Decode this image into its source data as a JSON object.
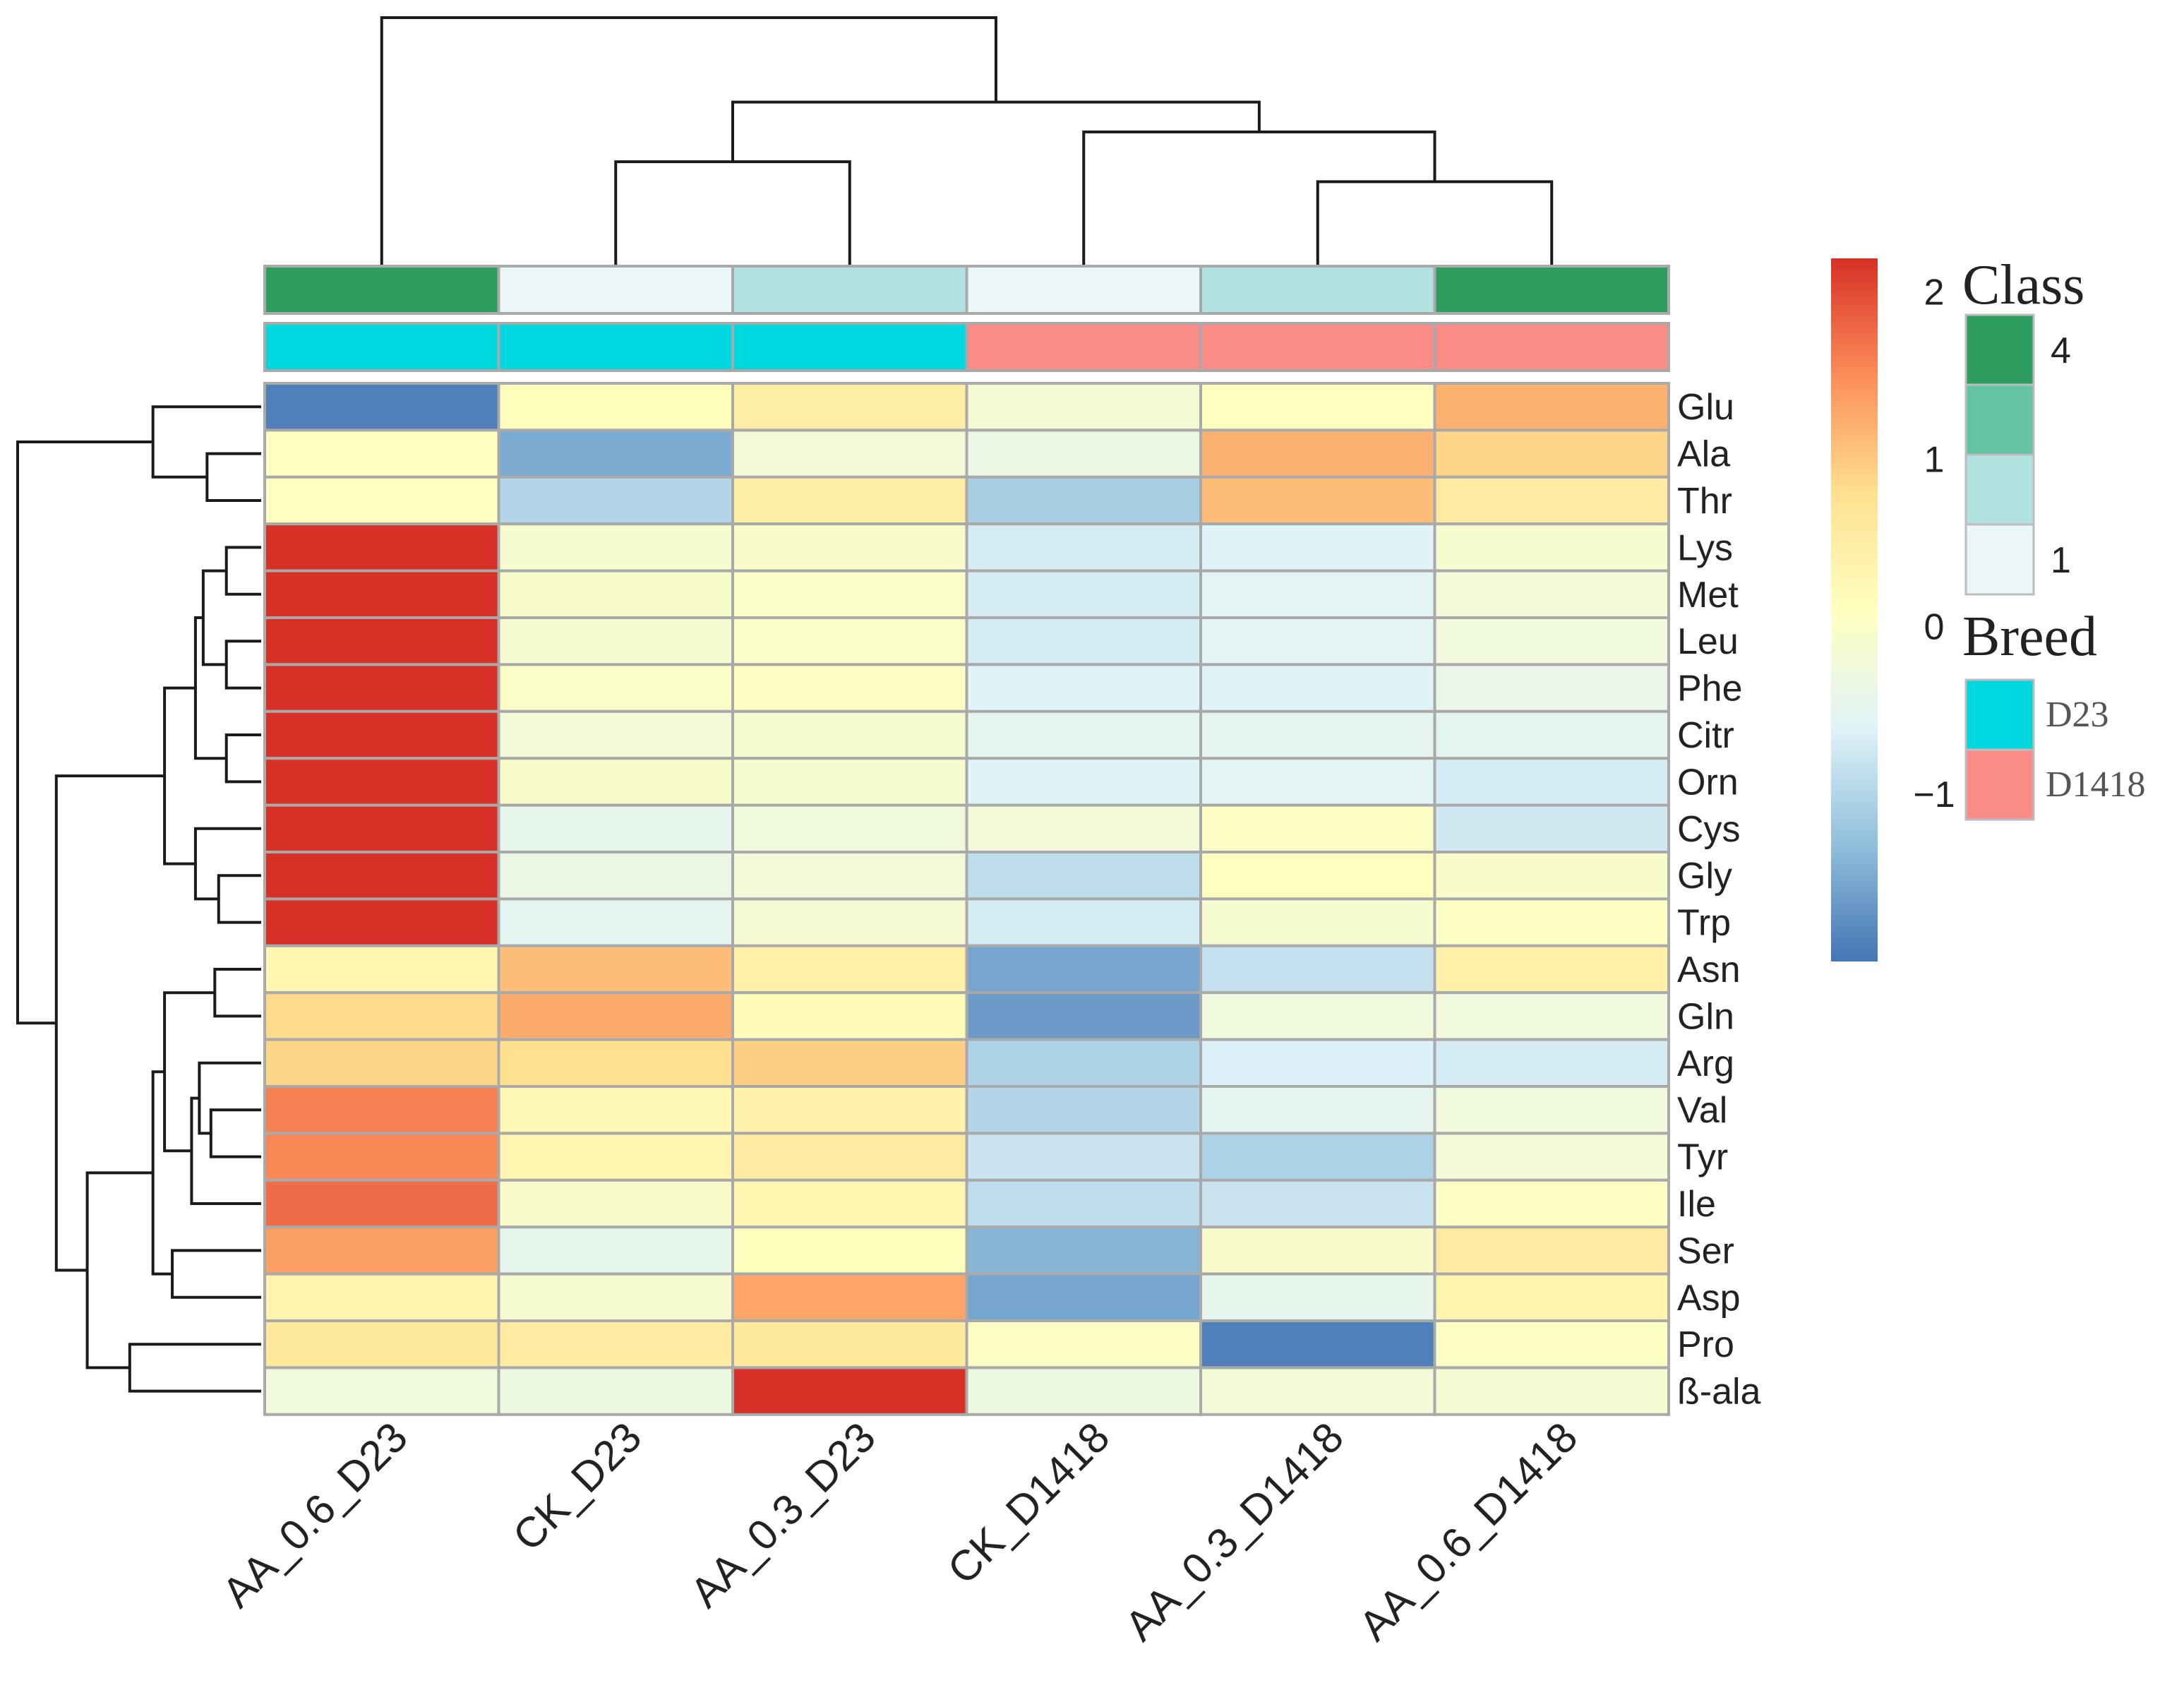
{
  "chart_data": {
    "type": "heatmap",
    "columns": [
      "AA_0.6_D23",
      "CK_D23",
      "AA_0.3_D23",
      "CK_D1418",
      "AA_0.3_D1418",
      "AA_0.6_D1418"
    ],
    "rows": [
      "Glu",
      "Ala",
      "Thr",
      "Lys",
      "Met",
      "Leu",
      "Phe",
      "Citr",
      "Orn",
      "Cys",
      "Gly",
      "Trp",
      "Asn",
      "Gln",
      "Arg",
      "Val",
      "Tyr",
      "Ile",
      "Ser",
      "Asp",
      "Pro",
      "ß-ala"
    ],
    "values": [
      [
        -1.9,
        0.15,
        0.5,
        -0.15,
        0.1,
        1.2
      ],
      [
        0.1,
        -1.5,
        -0.2,
        -0.35,
        1.2,
        0.9
      ],
      [
        0.1,
        -1.0,
        0.5,
        -1.1,
        1.1,
        0.55
      ],
      [
        2.2,
        -0.1,
        -0.05,
        -0.7,
        -0.6,
        -0.1
      ],
      [
        2.2,
        -0.05,
        0.0,
        -0.7,
        -0.55,
        -0.2
      ],
      [
        2.2,
        -0.1,
        0.0,
        -0.7,
        -0.55,
        -0.25
      ],
      [
        2.2,
        0.0,
        0.05,
        -0.6,
        -0.6,
        -0.4
      ],
      [
        2.2,
        -0.2,
        -0.1,
        -0.5,
        -0.5,
        -0.5
      ],
      [
        2.2,
        -0.05,
        -0.1,
        -0.6,
        -0.55,
        -0.7
      ],
      [
        2.2,
        -0.45,
        -0.25,
        -0.2,
        0.05,
        -0.75
      ],
      [
        2.2,
        -0.35,
        -0.2,
        -0.9,
        0.1,
        -0.05
      ],
      [
        2.2,
        -0.5,
        -0.15,
        -0.7,
        -0.1,
        0.05
      ],
      [
        0.3,
        1.1,
        0.45,
        -1.55,
        -0.85,
        0.45
      ],
      [
        0.85,
        1.25,
        0.2,
        -1.65,
        -0.25,
        -0.25
      ],
      [
        0.9,
        0.8,
        0.95,
        -1.05,
        -0.65,
        -0.7
      ],
      [
        1.6,
        0.25,
        0.4,
        -1.0,
        -0.5,
        -0.25
      ],
      [
        1.55,
        0.3,
        0.55,
        -0.8,
        -1.05,
        -0.2
      ],
      [
        1.75,
        -0.05,
        0.3,
        -0.9,
        -0.8,
        0.05
      ],
      [
        1.35,
        -0.45,
        0.15,
        -1.4,
        -0.05,
        0.55
      ],
      [
        0.35,
        -0.1,
        1.3,
        -1.55,
        -0.45,
        0.35
      ],
      [
        0.6,
        0.55,
        0.6,
        0.05,
        -1.9,
        0.05
      ],
      [
        -0.25,
        -0.3,
        2.2,
        -0.3,
        -0.2,
        -0.15
      ]
    ],
    "color_scale": {
      "min": -2,
      "max": 2.2,
      "stops": [
        "#4575b4",
        "#91bfdb",
        "#e0f3f8",
        "#ffffbf",
        "#fee090",
        "#fc8d59",
        "#d73027"
      ],
      "ticks": [
        "2",
        "1",
        "0",
        "−1"
      ],
      "tick_values": [
        2,
        1,
        0,
        -1
      ]
    },
    "annotations": {
      "class": [
        4,
        1,
        2,
        1,
        2,
        4
      ],
      "breed": [
        "D23",
        "D23",
        "D23",
        "D1418",
        "D1418",
        "D1418"
      ]
    },
    "class_legend": {
      "title": "Class",
      "levels": [
        4,
        3,
        2,
        1
      ],
      "colors": [
        "#2e9e5e",
        "#64c2a5",
        "#b2e2e0",
        "#eaf6f8"
      ],
      "labels": [
        "4",
        "",
        "",
        "1"
      ]
    },
    "breed_legend": {
      "title": "Breed",
      "entries": [
        {
          "label": "D23",
          "color": "#00d8e0"
        },
        {
          "label": "D1418",
          "color": "#fb8c88"
        }
      ]
    },
    "column_dendrogram": {
      "merges": [
        [
          4,
          5
        ],
        [
          1,
          2
        ],
        [
          3,
          -1
        ],
        [
          -2,
          -3
        ],
        [
          0,
          -4
        ]
      ],
      "heights": [
        1.7,
        2.1,
        2.7,
        3.3,
        5.0
      ]
    },
    "row_dendrogram": {
      "note": "hierarchical clustering of rows",
      "merges": [
        [
          3,
          4
        ],
        [
          5,
          6
        ],
        [
          7,
          8
        ],
        [
          -1,
          -2
        ],
        [
          -4,
          -3
        ],
        [
          10,
          11
        ],
        [
          9,
          -6
        ],
        [
          -5,
          -7
        ],
        [
          1,
          2
        ],
        [
          0,
          -9
        ],
        [
          15,
          16
        ],
        [
          14,
          -11
        ],
        [
          17,
          -12
        ],
        [
          12,
          13
        ],
        [
          -14,
          -13
        ],
        [
          18,
          19
        ],
        [
          -15,
          -16
        ],
        [
          20,
          21
        ],
        [
          -18,
          -17
        ],
        [
          -8,
          -19
        ],
        [
          -10,
          -20
        ]
      ],
      "heights": [
        0.9,
        0.9,
        0.9,
        1.5,
        1.7,
        1.1,
        1.7,
        2.5,
        1.4,
        2.8,
        1.3,
        1.6,
        1.8,
        1.2,
        2.5,
        2.3,
        2.8,
        3.4,
        4.5,
        5.3,
        6.3
      ]
    }
  }
}
